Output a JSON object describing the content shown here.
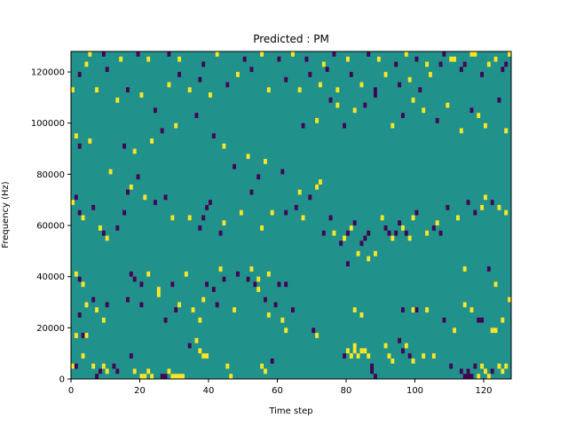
{
  "chart_data": {
    "type": "heatmap",
    "title": "Predicted : PM",
    "xlabel": "Time step",
    "ylabel": "Frequency (Hz)",
    "xlim": [
      0,
      128
    ],
    "ylim": [
      0,
      128000
    ],
    "x_ticks": [
      0,
      20,
      40,
      60,
      80,
      100,
      120
    ],
    "y_ticks": [
      0,
      20000,
      40000,
      60000,
      80000,
      100000,
      120000
    ],
    "grid": false,
    "colormap": "viridis",
    "background_value": 0,
    "value_colors": {
      "-1": "#440154",
      "0": "#21918c",
      "1": "#fde725"
    },
    "cell_width": 1,
    "cell_height": 2000,
    "cells": [
      [
        0,
        4000,
        1
      ],
      [
        1,
        4000,
        -1
      ],
      [
        1,
        16000,
        1
      ],
      [
        3,
        16000,
        -1
      ],
      [
        4,
        16000,
        1
      ],
      [
        3,
        8000,
        1
      ],
      [
        6,
        4000,
        1
      ],
      [
        7,
        0,
        -1
      ],
      [
        8,
        2000,
        -1
      ],
      [
        9,
        4000,
        1
      ],
      [
        10,
        2000,
        1
      ],
      [
        12,
        4000,
        -1
      ],
      [
        13,
        2000,
        -1
      ],
      [
        17,
        8000,
        -1
      ],
      [
        18,
        2000,
        1
      ],
      [
        20,
        0,
        1
      ],
      [
        21,
        0,
        1
      ],
      [
        22,
        2000,
        1
      ],
      [
        23,
        0,
        1
      ],
      [
        26,
        0,
        -1
      ],
      [
        27,
        0,
        -1
      ],
      [
        28,
        2000,
        1
      ],
      [
        29,
        0,
        1
      ],
      [
        30,
        0,
        1
      ],
      [
        31,
        0,
        1
      ],
      [
        32,
        0,
        1
      ],
      [
        34,
        12000,
        -1
      ],
      [
        36,
        14000,
        1
      ],
      [
        37,
        10000,
        1
      ],
      [
        38,
        8000,
        1
      ],
      [
        39,
        8000,
        1
      ],
      [
        46,
        0,
        1
      ],
      [
        45,
        4000,
        1
      ],
      [
        55,
        4000,
        1
      ],
      [
        56,
        2000,
        1
      ],
      [
        58,
        6000,
        -1
      ],
      [
        71,
        16000,
        1
      ],
      [
        79,
        8000,
        -1
      ],
      [
        80,
        10000,
        1
      ],
      [
        81,
        8000,
        1
      ],
      [
        82,
        12000,
        1
      ],
      [
        82,
        10000,
        1
      ],
      [
        83,
        8000,
        1
      ],
      [
        84,
        10000,
        1
      ],
      [
        85,
        10000,
        1
      ],
      [
        86,
        8000,
        1
      ],
      [
        87,
        2000,
        -1
      ],
      [
        87,
        4000,
        -1
      ],
      [
        88,
        0,
        -1
      ],
      [
        91,
        12000,
        1
      ],
      [
        92,
        8000,
        1
      ],
      [
        93,
        6000,
        1
      ],
      [
        95,
        14000,
        -1
      ],
      [
        96,
        10000,
        -1
      ],
      [
        97,
        12000,
        1
      ],
      [
        98,
        8000,
        -1
      ],
      [
        99,
        6000,
        1
      ],
      [
        102,
        8000,
        1
      ],
      [
        105,
        8000,
        1
      ],
      [
        110,
        4000,
        -1
      ],
      [
        111,
        18000,
        1
      ],
      [
        113,
        2000,
        -1
      ],
      [
        114,
        0,
        -1
      ],
      [
        115,
        2000,
        -1
      ],
      [
        115,
        0,
        -1
      ],
      [
        116,
        0,
        -1
      ],
      [
        117,
        4000,
        -1
      ],
      [
        118,
        0,
        1
      ],
      [
        119,
        4000,
        1
      ],
      [
        120,
        2000,
        1
      ],
      [
        121,
        0,
        1
      ],
      [
        122,
        2000,
        -1
      ],
      [
        123,
        18000,
        1
      ],
      [
        124,
        4000,
        1
      ],
      [
        125,
        2000,
        1
      ],
      [
        126,
        4000,
        1
      ],
      [
        2,
        24000,
        -1
      ],
      [
        4,
        28000,
        1
      ],
      [
        6,
        30000,
        -1
      ],
      [
        7,
        26000,
        1
      ],
      [
        9,
        22000,
        1
      ],
      [
        10,
        28000,
        -1
      ],
      [
        16,
        30000,
        -1
      ],
      [
        18,
        38000,
        -1
      ],
      [
        20,
        28000,
        -1
      ],
      [
        25,
        32000,
        1
      ],
      [
        27,
        22000,
        -1
      ],
      [
        30,
        26000,
        -1
      ],
      [
        31,
        28000,
        1
      ],
      [
        35,
        26000,
        1
      ],
      [
        37,
        22000,
        1
      ],
      [
        38,
        30000,
        1
      ],
      [
        41,
        34000,
        -1
      ],
      [
        42,
        28000,
        -1
      ],
      [
        44,
        38000,
        -1
      ],
      [
        47,
        26000,
        1
      ],
      [
        51,
        38000,
        -1
      ],
      [
        54,
        34000,
        1
      ],
      [
        56,
        30000,
        -1
      ],
      [
        57,
        24000,
        1
      ],
      [
        59,
        28000,
        -1
      ],
      [
        60,
        36000,
        -1
      ],
      [
        61,
        22000,
        1
      ],
      [
        62,
        18000,
        1
      ],
      [
        64,
        26000,
        -1
      ],
      [
        70,
        18000,
        -1
      ],
      [
        82,
        26000,
        1
      ],
      [
        84,
        24000,
        1
      ],
      [
        96,
        26000,
        -1
      ],
      [
        99,
        26000,
        1
      ],
      [
        100,
        26000,
        -1
      ],
      [
        103,
        26000,
        1
      ],
      [
        108,
        22000,
        -1
      ],
      [
        114,
        28000,
        1
      ],
      [
        116,
        26000,
        1
      ],
      [
        118,
        22000,
        -1
      ],
      [
        119,
        22000,
        -1
      ],
      [
        122,
        18000,
        1
      ],
      [
        125,
        22000,
        1
      ],
      [
        127,
        30000,
        1
      ],
      [
        1,
        40000,
        1
      ],
      [
        2,
        38000,
        -1
      ],
      [
        3,
        36000,
        1
      ],
      [
        17,
        40000,
        -1
      ],
      [
        20,
        36000,
        -1
      ],
      [
        22,
        40000,
        1
      ],
      [
        25,
        34000,
        1
      ],
      [
        29,
        36000,
        -1
      ],
      [
        33,
        40000,
        1
      ],
      [
        39,
        36000,
        -1
      ],
      [
        43,
        42000,
        1
      ],
      [
        48,
        40000,
        -1
      ],
      [
        52,
        42000,
        1
      ],
      [
        53,
        36000,
        -1
      ],
      [
        54,
        38000,
        1
      ],
      [
        57,
        40000,
        1
      ],
      [
        62,
        36000,
        -1
      ],
      [
        80,
        44000,
        -1
      ],
      [
        83,
        48000,
        1
      ],
      [
        86,
        46000,
        1
      ],
      [
        88,
        48000,
        1
      ],
      [
        114,
        42000,
        1
      ],
      [
        121,
        42000,
        -1
      ],
      [
        123,
        36000,
        1
      ],
      [
        0,
        68000,
        1
      ],
      [
        1,
        70000,
        -1
      ],
      [
        2,
        64000,
        -1
      ],
      [
        3,
        62000,
        1
      ],
      [
        6,
        66000,
        -1
      ],
      [
        8,
        58000,
        1
      ],
      [
        9,
        56000,
        -1
      ],
      [
        10,
        54000,
        1
      ],
      [
        13,
        58000,
        -1
      ],
      [
        15,
        64000,
        -1
      ],
      [
        16,
        72000,
        -1
      ],
      [
        17,
        74000,
        1
      ],
      [
        19,
        78000,
        -1
      ],
      [
        21,
        70000,
        1
      ],
      [
        24,
        68000,
        -1
      ],
      [
        27,
        70000,
        -1
      ],
      [
        29,
        62000,
        1
      ],
      [
        34,
        62000,
        1
      ],
      [
        37,
        58000,
        -1
      ],
      [
        38,
        62000,
        -1
      ],
      [
        39,
        66000,
        -1
      ],
      [
        40,
        68000,
        -1
      ],
      [
        43,
        56000,
        -1
      ],
      [
        44,
        60000,
        1
      ],
      [
        49,
        64000,
        1
      ],
      [
        52,
        72000,
        -1
      ],
      [
        55,
        58000,
        1
      ],
      [
        58,
        64000,
        1
      ],
      [
        62,
        64000,
        -1
      ],
      [
        65,
        66000,
        -1
      ],
      [
        66,
        72000,
        1
      ],
      [
        67,
        62000,
        1
      ],
      [
        69,
        70000,
        -1
      ],
      [
        71,
        74000,
        1
      ],
      [
        72,
        76000,
        1
      ],
      [
        73,
        56000,
        -1
      ],
      [
        75,
        62000,
        -1
      ],
      [
        76,
        56000,
        1
      ],
      [
        78,
        52000,
        -1
      ],
      [
        79,
        54000,
        1
      ],
      [
        80,
        56000,
        -1
      ],
      [
        81,
        58000,
        1
      ],
      [
        82,
        60000,
        -1
      ],
      [
        84,
        52000,
        -1
      ],
      [
        85,
        54000,
        -1
      ],
      [
        86,
        56000,
        -1
      ],
      [
        90,
        62000,
        1
      ],
      [
        91,
        58000,
        -1
      ],
      [
        92,
        56000,
        -1
      ],
      [
        93,
        54000,
        1
      ],
      [
        94,
        56000,
        -1
      ],
      [
        95,
        60000,
        -1
      ],
      [
        96,
        58000,
        1
      ],
      [
        97,
        56000,
        -1
      ],
      [
        98,
        54000,
        1
      ],
      [
        99,
        62000,
        1
      ],
      [
        100,
        64000,
        -1
      ],
      [
        103,
        56000,
        1
      ],
      [
        105,
        58000,
        -1
      ],
      [
        106,
        60000,
        1
      ],
      [
        107,
        56000,
        -1
      ],
      [
        109,
        66000,
        -1
      ],
      [
        112,
        62000,
        1
      ],
      [
        115,
        68000,
        -1
      ],
      [
        117,
        64000,
        -1
      ],
      [
        119,
        66000,
        1
      ],
      [
        120,
        70000,
        1
      ],
      [
        122,
        68000,
        -1
      ],
      [
        124,
        66000,
        1
      ],
      [
        126,
        64000,
        1
      ],
      [
        1,
        94000,
        1
      ],
      [
        2,
        90000,
        -1
      ],
      [
        5,
        92000,
        1
      ],
      [
        11,
        80000,
        1
      ],
      [
        15,
        90000,
        -1
      ],
      [
        18,
        88000,
        1
      ],
      [
        23,
        92000,
        1
      ],
      [
        26,
        96000,
        -1
      ],
      [
        30,
        98000,
        1
      ],
      [
        36,
        102000,
        -1
      ],
      [
        41,
        94000,
        -1
      ],
      [
        44,
        90000,
        1
      ],
      [
        47,
        82000,
        -1
      ],
      [
        51,
        86000,
        1
      ],
      [
        54,
        78000,
        -1
      ],
      [
        56,
        84000,
        1
      ],
      [
        61,
        80000,
        -1
      ],
      [
        67,
        98000,
        -1
      ],
      [
        71,
        100000,
        1
      ],
      [
        75,
        108000,
        -1
      ],
      [
        77,
        106000,
        1
      ],
      [
        79,
        98000,
        -1
      ],
      [
        82,
        104000,
        1
      ],
      [
        85,
        106000,
        -1
      ],
      [
        88,
        110000,
        -1
      ],
      [
        93,
        98000,
        1
      ],
      [
        96,
        102000,
        -1
      ],
      [
        99,
        108000,
        1
      ],
      [
        102,
        104000,
        1
      ],
      [
        106,
        100000,
        -1
      ],
      [
        109,
        106000,
        1
      ],
      [
        113,
        96000,
        1
      ],
      [
        116,
        104000,
        -1
      ],
      [
        118,
        102000,
        1
      ],
      [
        120,
        98000,
        1
      ],
      [
        124,
        108000,
        -1
      ],
      [
        126,
        96000,
        1
      ],
      [
        0,
        112000,
        1
      ],
      [
        2,
        118000,
        -1
      ],
      [
        4,
        122000,
        1
      ],
      [
        7,
        112000,
        1
      ],
      [
        10,
        120000,
        -1
      ],
      [
        13,
        108000,
        1
      ],
      [
        16,
        112000,
        -1
      ],
      [
        20,
        110000,
        1
      ],
      [
        24,
        104000,
        -1
      ],
      [
        28,
        114000,
        1
      ],
      [
        31,
        118000,
        -1
      ],
      [
        34,
        112000,
        1
      ],
      [
        37,
        116000,
        -1
      ],
      [
        40,
        110000,
        1
      ],
      [
        45,
        114000,
        -1
      ],
      [
        48,
        118000,
        1
      ],
      [
        52,
        120000,
        -1
      ],
      [
        57,
        112000,
        1
      ],
      [
        62,
        116000,
        -1
      ],
      [
        66,
        112000,
        1
      ],
      [
        69,
        118000,
        -1
      ],
      [
        72,
        114000,
        1
      ],
      [
        74,
        120000,
        -1
      ],
      [
        77,
        112000,
        1
      ],
      [
        81,
        118000,
        -1
      ],
      [
        84,
        114000,
        1
      ],
      [
        88,
        112000,
        -1
      ],
      [
        91,
        118000,
        1
      ],
      [
        95,
        114000,
        -1
      ],
      [
        98,
        116000,
        1
      ],
      [
        101,
        112000,
        -1
      ],
      [
        104,
        118000,
        1
      ],
      [
        107,
        122000,
        -1
      ],
      [
        110,
        124000,
        1
      ],
      [
        113,
        120000,
        -1
      ],
      [
        116,
        126000,
        1
      ],
      [
        119,
        118000,
        -1
      ],
      [
        121,
        122000,
        1
      ],
      [
        123,
        124000,
        1
      ],
      [
        125,
        120000,
        -1
      ],
      [
        127,
        126000,
        1
      ],
      [
        5,
        126000,
        1
      ],
      [
        9,
        126000,
        -1
      ],
      [
        14,
        124000,
        1
      ],
      [
        19,
        126000,
        -1
      ],
      [
        22,
        124000,
        1
      ],
      [
        28,
        126000,
        -1
      ],
      [
        31,
        124000,
        1
      ],
      [
        38,
        122000,
        -1
      ],
      [
        42,
        126000,
        1
      ],
      [
        50,
        124000,
        -1
      ],
      [
        55,
        126000,
        1
      ],
      [
        60,
        124000,
        -1
      ],
      [
        64,
        126000,
        1
      ],
      [
        68,
        124000,
        -1
      ],
      [
        73,
        122000,
        1
      ],
      [
        76,
        126000,
        -1
      ],
      [
        80,
        124000,
        1
      ],
      [
        86,
        126000,
        -1
      ],
      [
        89,
        124000,
        1
      ],
      [
        94,
        122000,
        -1
      ],
      [
        97,
        126000,
        1
      ],
      [
        100,
        124000,
        -1
      ],
      [
        103,
        122000,
        1
      ],
      [
        108,
        126000,
        -1
      ],
      [
        111,
        124000,
        1
      ],
      [
        114,
        122000,
        -1
      ],
      [
        117,
        126000,
        1
      ],
      [
        126,
        122000,
        -1
      ]
    ]
  }
}
